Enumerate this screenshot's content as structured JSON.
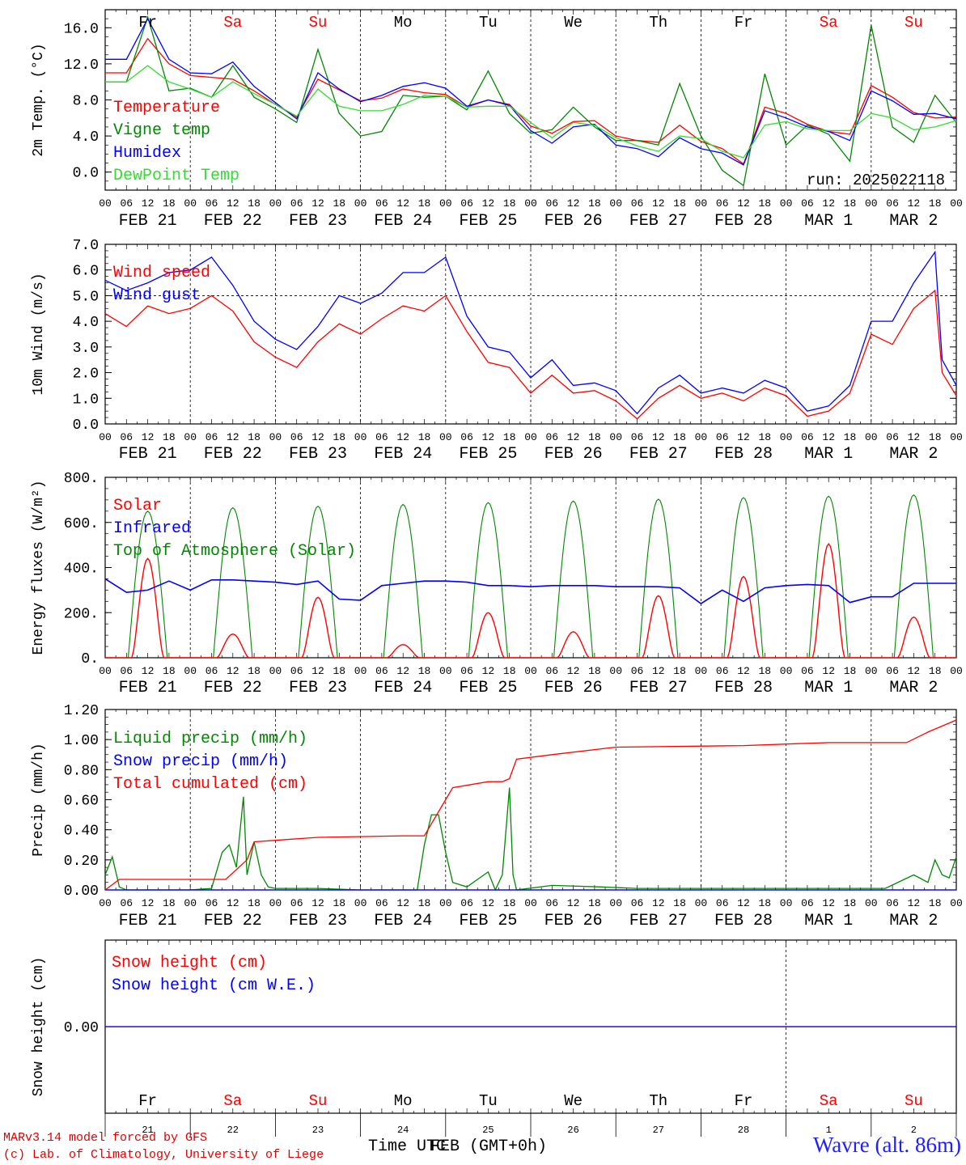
{
  "footer": {
    "model": "MARv3.14 model forced by GFS",
    "credit": "(c) Lab. of Climatology, University of Liege",
    "xlabel": "Time UTC",
    "xlabel2": "FEB (GMT+0h)",
    "station": "Wavre (alt. 86m)"
  },
  "colors": {
    "red": "#ff0000",
    "green": "#008800",
    "blue": "#0000ff",
    "lightgreen": "#33dd33",
    "weekend": "#ff0000"
  },
  "days": [
    "Fr",
    "Sa",
    "Su",
    "Mo",
    "Tu",
    "We",
    "Th",
    "Fr",
    "Sa",
    "Su"
  ],
  "weekend_flags": [
    false,
    true,
    true,
    false,
    false,
    false,
    false,
    false,
    true,
    true
  ],
  "date_labels": [
    "FEB 21",
    "FEB 22",
    "FEB 23",
    "FEB 24",
    "FEB 25",
    "FEB 26",
    "FEB 27",
    "FEB 28",
    "MAR  1",
    "MAR  2"
  ],
  "hour_ticks": [
    "00",
    "06",
    "12",
    "18"
  ],
  "bottom_day_numbers": [
    "21",
    "22",
    "23",
    "24",
    "25",
    "26",
    "27",
    "28",
    "1",
    "2"
  ],
  "run_label": "run: 2025022118",
  "chart_data": [
    {
      "type": "line",
      "ylabel": "2m Temp. (°C)",
      "ylim": [
        -2,
        18
      ],
      "yticks": [
        "0.0",
        "4.0",
        "8.0",
        "12.0",
        "16.0"
      ],
      "ytick_values": [
        0,
        4,
        8,
        12,
        16
      ],
      "x_unit": "hours since 2025-02-21 00 UTC",
      "series": [
        {
          "name": "Temperature",
          "color": "#ff0000",
          "x": [
            0,
            6,
            12,
            18,
            24,
            30,
            36,
            42,
            48,
            54,
            60,
            66,
            72,
            78,
            84,
            90,
            96,
            102,
            108,
            114,
            120,
            126,
            132,
            138,
            144,
            150,
            156,
            162,
            168,
            174,
            180,
            186,
            192,
            198,
            204,
            210,
            216,
            222,
            228,
            234,
            240
          ],
          "y": [
            11,
            11,
            14.8,
            12,
            10.7,
            10.5,
            10.3,
            9,
            7.5,
            6.1,
            10.3,
            9.1,
            7.9,
            8.2,
            9.2,
            8.8,
            8.6,
            7.2,
            8,
            7.5,
            5.1,
            4.3,
            5.6,
            5.7,
            4,
            3.5,
            3.3,
            5.2,
            3.4,
            2.6,
            0.9,
            7.2,
            6.5,
            5.3,
            4.5,
            4.2,
            9.6,
            8.3,
            6.6,
            6,
            6.1
          ]
        },
        {
          "name": "Vigne temp",
          "color": "#008800",
          "x": [
            0,
            6,
            12,
            18,
            24,
            30,
            36,
            42,
            48,
            54,
            60,
            66,
            72,
            78,
            84,
            90,
            96,
            102,
            108,
            114,
            120,
            126,
            132,
            138,
            144,
            150,
            156,
            162,
            168,
            174,
            180,
            186,
            192,
            198,
            204,
            210,
            216,
            222,
            228,
            234,
            240
          ],
          "y": [
            10,
            10,
            17.2,
            9,
            9.3,
            8.3,
            11.8,
            8.3,
            7,
            5.5,
            13.6,
            6.5,
            4,
            4.5,
            8.5,
            8.3,
            8.4,
            6.9,
            11.2,
            6.5,
            4.3,
            4.7,
            7.2,
            5,
            3.5,
            3.5,
            3,
            9.8,
            4,
            0.2,
            -1.5,
            10.9,
            3,
            5.2,
            4.2,
            1.2,
            16.3,
            5,
            3.3,
            8.5,
            5.5
          ]
        },
        {
          "name": "Humidex",
          "color": "#0000ff",
          "x": [
            0,
            6,
            12,
            18,
            24,
            30,
            36,
            42,
            48,
            54,
            60,
            66,
            72,
            78,
            84,
            90,
            96,
            102,
            108,
            114,
            120,
            126,
            132,
            138,
            144,
            150,
            156,
            162,
            168,
            174,
            180,
            186,
            192,
            198,
            204,
            210,
            216,
            222,
            228,
            234,
            240
          ],
          "y": [
            12.5,
            12.5,
            17,
            12.5,
            11,
            10.9,
            12.2,
            9.5,
            7.7,
            5.9,
            11,
            9.2,
            7.8,
            8.5,
            9.5,
            9.9,
            9.3,
            7.3,
            8,
            7.4,
            4.6,
            3.2,
            5,
            5.3,
            3,
            2.6,
            1.7,
            3.8,
            2.6,
            2.1,
            0.8,
            6.8,
            6,
            5,
            4.5,
            3.5,
            9,
            7.9,
            6.4,
            6.5,
            5.9
          ]
        },
        {
          "name": "DewPoint Temp",
          "color": "#33dd33",
          "x": [
            0,
            6,
            12,
            18,
            24,
            30,
            36,
            42,
            48,
            54,
            60,
            66,
            72,
            78,
            84,
            90,
            96,
            102,
            108,
            114,
            120,
            126,
            132,
            138,
            144,
            150,
            156,
            162,
            168,
            174,
            180,
            186,
            192,
            198,
            204,
            210,
            216,
            222,
            228,
            234,
            240
          ],
          "y": [
            10,
            10,
            11.8,
            10,
            9.2,
            8.3,
            10,
            8.7,
            7.5,
            6.2,
            9.2,
            7.3,
            6.8,
            6.8,
            7.5,
            8.5,
            8.4,
            7.2,
            7.3,
            7.3,
            5.5,
            3.8,
            5.5,
            5.2,
            3.8,
            2.9,
            2.3,
            4,
            3.7,
            2.3,
            1.6,
            5.2,
            5.6,
            4.8,
            4.6,
            4.6,
            6.5,
            6,
            4.7,
            5,
            5.7
          ]
        }
      ]
    },
    {
      "type": "line",
      "ylabel": "10m Wind (m/s)",
      "ylim": [
        0,
        7
      ],
      "yticks": [
        "0.0",
        "1.0",
        "2.0",
        "3.0",
        "4.0",
        "5.0",
        "6.0",
        "7.0"
      ],
      "ytick_values": [
        0,
        1,
        2,
        3,
        4,
        5,
        6,
        7
      ],
      "ref_line": 5,
      "x_unit": "hours since 2025-02-21 00 UTC",
      "series": [
        {
          "name": "Wind speed",
          "color": "#ff0000",
          "x": [
            0,
            6,
            12,
            18,
            24,
            30,
            36,
            42,
            48,
            54,
            60,
            66,
            72,
            78,
            84,
            90,
            96,
            102,
            108,
            114,
            120,
            126,
            132,
            138,
            144,
            150,
            156,
            162,
            168,
            174,
            180,
            186,
            192,
            198,
            204,
            210,
            216,
            222,
            228,
            234,
            236,
            240
          ],
          "y": [
            4.3,
            3.8,
            4.6,
            4.3,
            4.5,
            5,
            4.4,
            3.2,
            2.6,
            2.2,
            3.2,
            3.9,
            3.5,
            4.1,
            4.6,
            4.4,
            5,
            3.6,
            2.4,
            2.2,
            1.2,
            1.9,
            1.2,
            1.3,
            0.9,
            0.2,
            1,
            1.5,
            1,
            1.2,
            0.9,
            1.4,
            1.1,
            0.3,
            0.5,
            1.2,
            3.5,
            3.1,
            4.5,
            5.2,
            2,
            1.1
          ]
        },
        {
          "name": "Wind gust",
          "color": "#0000ff",
          "x": [
            0,
            6,
            12,
            18,
            24,
            30,
            36,
            42,
            48,
            54,
            60,
            66,
            72,
            78,
            84,
            90,
            96,
            102,
            108,
            114,
            120,
            126,
            132,
            138,
            144,
            150,
            156,
            162,
            168,
            174,
            180,
            186,
            192,
            198,
            204,
            210,
            216,
            222,
            228,
            234,
            236,
            240
          ],
          "y": [
            5.6,
            5.2,
            5.5,
            5.9,
            6,
            6.5,
            5.4,
            4,
            3.3,
            2.9,
            3.8,
            5,
            4.7,
            5.1,
            5.9,
            5.9,
            6.5,
            4.2,
            3,
            2.8,
            1.8,
            2.5,
            1.5,
            1.6,
            1.3,
            0.4,
            1.4,
            1.9,
            1.2,
            1.4,
            1.2,
            1.7,
            1.4,
            0.5,
            0.7,
            1.5,
            4,
            4,
            5.5,
            6.7,
            2.5,
            1.5
          ]
        }
      ]
    },
    {
      "type": "area",
      "ylabel": "Energy fluxes (W/m²)",
      "ylim": [
        0,
        800
      ],
      "yticks": [
        "0.",
        "200.",
        "400.",
        "600.",
        "800."
      ],
      "ytick_values": [
        0,
        200,
        400,
        600,
        800
      ],
      "x_unit": "hours since 2025-02-21 00 UTC",
      "toa_peaks": [
        650,
        665,
        672,
        680,
        688,
        695,
        703,
        710,
        716,
        722
      ],
      "solar_peaks": [
        440,
        105,
        268,
        58,
        200,
        115,
        275,
        360,
        505,
        180
      ],
      "series": [
        {
          "name": "Solar",
          "color": "#ff0000"
        },
        {
          "name": "Infrared",
          "color": "#0000ff",
          "x": [
            0,
            6,
            12,
            18,
            24,
            30,
            36,
            42,
            48,
            54,
            60,
            66,
            72,
            78,
            84,
            90,
            96,
            102,
            108,
            114,
            120,
            126,
            132,
            138,
            144,
            150,
            156,
            162,
            168,
            174,
            180,
            186,
            192,
            198,
            204,
            210,
            216,
            222,
            228,
            234,
            240
          ],
          "y": [
            350,
            290,
            300,
            340,
            300,
            345,
            345,
            340,
            335,
            325,
            340,
            260,
            255,
            320,
            330,
            340,
            340,
            335,
            320,
            320,
            315,
            320,
            320,
            320,
            315,
            315,
            315,
            310,
            240,
            300,
            250,
            310,
            320,
            325,
            320,
            245,
            270,
            270,
            330,
            330,
            330
          ]
        },
        {
          "name": "Top of Atmosphere (Solar)",
          "color": "#008800"
        }
      ]
    },
    {
      "type": "line",
      "ylabel": "Precip (mm/h)",
      "ylim": [
        0,
        1.2
      ],
      "yticks": [
        "0.00",
        "0.20",
        "0.40",
        "0.60",
        "0.80",
        "1.00",
        "1.20"
      ],
      "ytick_values": [
        0,
        0.2,
        0.4,
        0.6,
        0.8,
        1.0,
        1.2
      ],
      "x_unit": "hours since 2025-02-21 00 UTC",
      "series": [
        {
          "name": "Liquid precip (mm/h)",
          "color": "#008800",
          "x": [
            0,
            2,
            4,
            6,
            10,
            24,
            30,
            33,
            35,
            37,
            39,
            40,
            42,
            44,
            46,
            48,
            60,
            72,
            88,
            90,
            92,
            94,
            96,
            98,
            102,
            108,
            110,
            112,
            114,
            115,
            116,
            126,
            140,
            150,
            220,
            228,
            232,
            234,
            236,
            238,
            240
          ],
          "y": [
            0.1,
            0.22,
            0.02,
            0,
            0,
            0,
            0.01,
            0.25,
            0.3,
            0.15,
            0.62,
            0.1,
            0.32,
            0.1,
            0.02,
            0.01,
            0.01,
            0,
            0,
            0.3,
            0.5,
            0.5,
            0.25,
            0.05,
            0.02,
            0.12,
            0,
            0.1,
            0.68,
            0.1,
            0,
            0.03,
            0.02,
            0.01,
            0.01,
            0.1,
            0.05,
            0.2,
            0.1,
            0.08,
            0.22
          ]
        },
        {
          "name": "Snow precip (mm/h)",
          "color": "#0000ff",
          "x": [
            0,
            240
          ],
          "y": [
            0,
            0
          ]
        },
        {
          "name": "Total cumulated (cm)",
          "color": "#ff0000",
          "x": [
            0,
            4,
            34,
            40,
            42,
            48,
            60,
            84,
            90,
            96,
            98,
            108,
            112,
            114,
            116,
            126,
            144,
            180,
            192,
            204,
            216,
            226,
            232,
            240
          ],
          "y": [
            0,
            0.07,
            0.07,
            0.2,
            0.32,
            0.33,
            0.35,
            0.36,
            0.36,
            0.6,
            0.68,
            0.72,
            0.72,
            0.74,
            0.87,
            0.9,
            0.95,
            0.96,
            0.97,
            0.98,
            0.98,
            0.98,
            1.05,
            1.13
          ]
        }
      ]
    },
    {
      "type": "line",
      "ylabel": "Snow height (cm)",
      "yticks": [
        "0.00"
      ],
      "ytick_values": [
        0
      ],
      "ylim": [
        -1,
        1
      ],
      "x_unit": "hours since 2025-02-21 00 UTC",
      "series": [
        {
          "name": "Snow height (cm)",
          "color": "#ff0000",
          "x": [
            0,
            240
          ],
          "y": [
            0,
            0
          ]
        },
        {
          "name": "Snow height (cm W.E.)",
          "color": "#0000ff",
          "x": [
            0,
            240
          ],
          "y": [
            0,
            0
          ]
        }
      ]
    }
  ]
}
